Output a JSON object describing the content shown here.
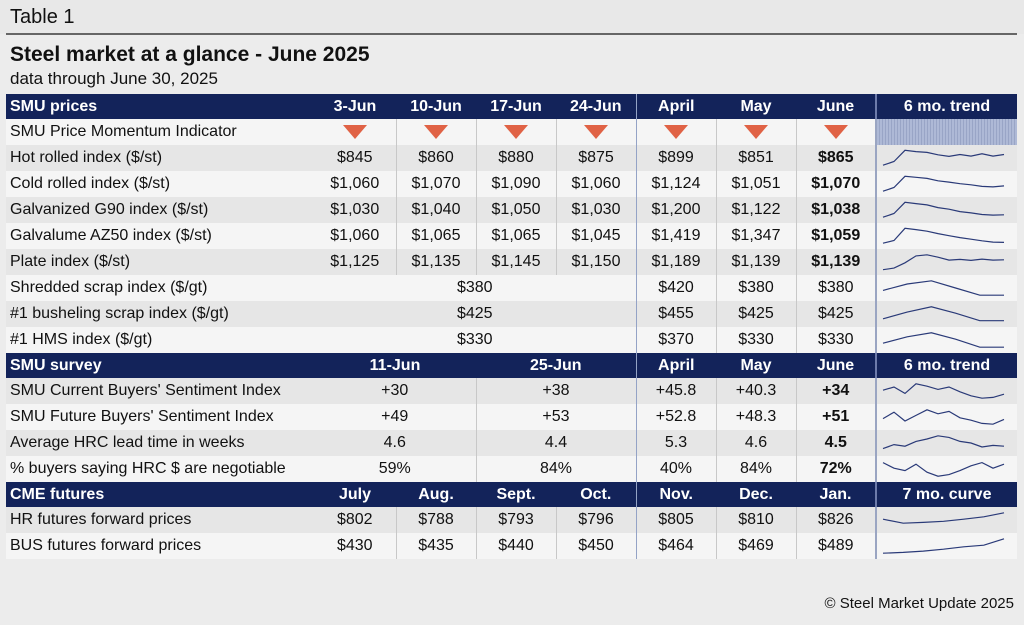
{
  "table_label": "Table 1",
  "title": "Steel market at a glance - June 2025",
  "subtitle": "data through June 30, 2025",
  "credit": "© Steel Market Update 2025",
  "colors": {
    "header_bg": "#13235a",
    "arrow": "#e06245",
    "sparkline": "#2a3a78"
  },
  "prices": {
    "header": [
      "SMU prices",
      "3-Jun",
      "10-Jun",
      "17-Jun",
      "24-Jun",
      "April",
      "May",
      "June",
      "6 mo. trend"
    ],
    "momentum": {
      "label": "SMU Price Momentum Indicator",
      "arrows": [
        "down-arrow-icon",
        "down-arrow-icon",
        "down-arrow-icon",
        "down-arrow-icon",
        "down-arrow-icon",
        "down-arrow-icon",
        "down-arrow-icon"
      ]
    },
    "rows": [
      {
        "label": "Hot rolled index ($/st)",
        "values": [
          "$845",
          "$860",
          "$880",
          "$875",
          "$899",
          "$851",
          "$865"
        ],
        "trend": [
          0.05,
          0.28,
          0.98,
          0.9,
          0.85,
          0.7,
          0.6,
          0.72,
          0.62,
          0.76,
          0.62,
          0.72
        ]
      },
      {
        "label": "Cold rolled index ($/st)",
        "values": [
          "$1,060",
          "$1,070",
          "$1,090",
          "$1,060",
          "$1,124",
          "$1,051",
          "$1,070"
        ],
        "trend": [
          0.05,
          0.28,
          0.98,
          0.92,
          0.85,
          0.7,
          0.62,
          0.52,
          0.45,
          0.35,
          0.32,
          0.38
        ]
      },
      {
        "label": "Galvanized G90 index ($/st)",
        "values": [
          "$1,030",
          "$1,040",
          "$1,050",
          "$1,030",
          "$1,200",
          "$1,122",
          "$1,038"
        ],
        "trend": [
          0.05,
          0.28,
          0.98,
          0.9,
          0.82,
          0.65,
          0.55,
          0.4,
          0.32,
          0.22,
          0.18,
          0.2
        ]
      },
      {
        "label": "Galvalume AZ50 index ($/st)",
        "values": [
          "$1,060",
          "$1,065",
          "$1,065",
          "$1,045",
          "$1,419",
          "$1,347",
          "$1,059"
        ],
        "trend": [
          0.05,
          0.22,
          0.98,
          0.9,
          0.8,
          0.65,
          0.52,
          0.4,
          0.3,
          0.2,
          0.12,
          0.1
        ]
      },
      {
        "label": "Plate index ($/st)",
        "values": [
          "$1,125",
          "$1,135",
          "$1,145",
          "$1,150",
          "$1,189",
          "$1,139",
          "$1,139"
        ],
        "trend": [
          0.02,
          0.12,
          0.45,
          0.88,
          0.95,
          0.8,
          0.62,
          0.66,
          0.6,
          0.68,
          0.62,
          0.64
        ]
      }
    ],
    "scrap_rows": [
      {
        "label": "Shredded scrap index ($/gt)",
        "weekly": "$380",
        "values": [
          "$420",
          "$380",
          "$380"
        ],
        "trend": [
          0.35,
          0.75,
          0.95,
          0.5,
          0.05,
          0.05
        ]
      },
      {
        "label": "#1 busheling scrap index ($/gt)",
        "weekly": "$425",
        "values": [
          "$455",
          "$425",
          "$425"
        ],
        "trend": [
          0.2,
          0.62,
          0.95,
          0.55,
          0.08,
          0.08
        ]
      },
      {
        "label": "#1 HMS index ($/gt)",
        "weekly": "$330",
        "values": [
          "$370",
          "$330",
          "$330"
        ],
        "trend": [
          0.3,
          0.7,
          0.95,
          0.55,
          0.05,
          0.05
        ]
      }
    ]
  },
  "survey": {
    "header": [
      "SMU survey",
      "11-Jun",
      "25-Jun",
      "April",
      "May",
      "June",
      "6 mo. trend"
    ],
    "rows": [
      {
        "label": "SMU Current Buyers' Sentiment Index",
        "values": [
          "+30",
          "+38",
          "+45.8",
          "+40.3",
          "+34"
        ],
        "trend": [
          0.55,
          0.75,
          0.35,
          0.95,
          0.8,
          0.6,
          0.75,
          0.45,
          0.2,
          0.05,
          0.1,
          0.3
        ]
      },
      {
        "label": "SMU Future Buyers' Sentiment Index",
        "values": [
          "+49",
          "+53",
          "+52.8",
          "+48.3",
          "+51"
        ],
        "trend": [
          0.4,
          0.8,
          0.25,
          0.6,
          0.95,
          0.7,
          0.85,
          0.45,
          0.3,
          0.1,
          0.05,
          0.35
        ]
      },
      {
        "label": "Average HRC lead time in weeks",
        "values": [
          "4.6",
          "4.4",
          "5.3",
          "4.6",
          "4.5"
        ],
        "trend": [
          0.15,
          0.4,
          0.3,
          0.6,
          0.75,
          0.95,
          0.85,
          0.6,
          0.5,
          0.25,
          0.35,
          0.3
        ]
      },
      {
        "label": "% buyers saying HRC $ are negotiable",
        "values": [
          "59%",
          "84%",
          "40%",
          "84%",
          "72%"
        ],
        "trend": [
          0.9,
          0.55,
          0.4,
          0.8,
          0.3,
          0.05,
          0.15,
          0.4,
          0.7,
          0.9,
          0.55,
          0.8
        ]
      }
    ]
  },
  "futures": {
    "header": [
      "CME futures",
      "July",
      "Aug.",
      "Sept.",
      "Oct.",
      "Nov.",
      "Dec.",
      "Jan.",
      "7 mo. curve"
    ],
    "rows": [
      {
        "label": "HR futures forward prices",
        "values": [
          "$802",
          "$788",
          "$793",
          "$796",
          "$805",
          "$810",
          "$826"
        ],
        "trend": [
          0.55,
          0.3,
          0.35,
          0.42,
          0.55,
          0.7,
          0.95
        ]
      },
      {
        "label": "BUS futures forward prices",
        "values": [
          "$430",
          "$435",
          "$440",
          "$450",
          "$464",
          "$469",
          "$489"
        ],
        "trend": [
          0.05,
          0.1,
          0.18,
          0.3,
          0.45,
          0.55,
          0.95
        ]
      }
    ]
  }
}
